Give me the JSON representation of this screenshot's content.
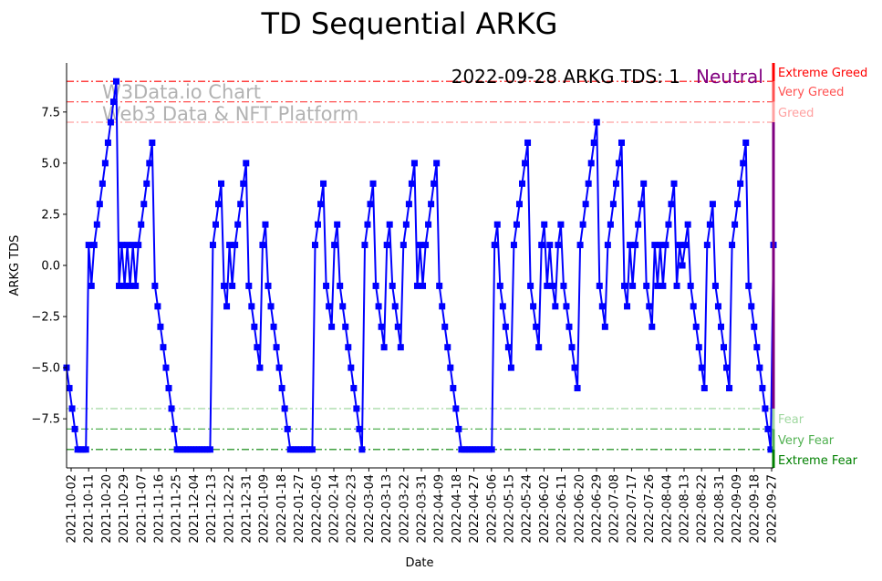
{
  "chart_data": {
    "type": "line",
    "title": "TD Sequential ARKG",
    "xlabel": "Date",
    "ylabel": "ARKG TDS",
    "ylim": [
      -9.9,
      9.9
    ],
    "xlim": [
      "2021-09-30",
      "2022-09-28"
    ],
    "grid": false,
    "watermark": [
      "W3Data.io Chart",
      "Web3 Data & NFT Platform"
    ],
    "annotation": {
      "text": "2022-09-28 ARKG TDS: 1",
      "status": "Neutral",
      "status_color": "#800080"
    },
    "yticks": [
      -7.5,
      -5.0,
      -2.5,
      0.0,
      2.5,
      5.0,
      7.5
    ],
    "ytick_labels": [
      "−7.5",
      "−5.0",
      "−2.5",
      "0.0",
      "2.5",
      "5.0",
      "7.5"
    ],
    "xtick_labels": [
      "2021-10-02",
      "2021-10-11",
      "2021-10-20",
      "2021-10-29",
      "2021-11-07",
      "2021-11-16",
      "2021-11-25",
      "2021-12-04",
      "2021-12-13",
      "2021-12-22",
      "2021-12-31",
      "2022-01-09",
      "2022-01-18",
      "2022-01-27",
      "2022-02-05",
      "2022-02-14",
      "2022-02-23",
      "2022-03-04",
      "2022-03-13",
      "2022-03-22",
      "2022-03-31",
      "2022-04-09",
      "2022-04-18",
      "2022-04-27",
      "2022-05-06",
      "2022-05-15",
      "2022-05-24",
      "2022-06-02",
      "2022-06-11",
      "2022-06-20",
      "2022-06-29",
      "2022-07-08",
      "2022-07-17",
      "2022-07-26",
      "2022-08-04",
      "2022-08-13",
      "2022-08-22",
      "2022-08-31",
      "2022-09-09",
      "2022-09-18",
      "2022-09-27"
    ],
    "levels": [
      {
        "name": "Extreme Greed",
        "value": 9,
        "color": "#ff0000"
      },
      {
        "name": "Very Greed",
        "value": 8,
        "color": "#ff5050"
      },
      {
        "name": "Greed",
        "value": 7,
        "color": "#ffa0a0"
      },
      {
        "name": "Fear",
        "value": -7,
        "color": "#a0d8a0"
      },
      {
        "name": "Very Fear",
        "value": -8,
        "color": "#50b050"
      },
      {
        "name": "Extreme Fear",
        "value": -9,
        "color": "#008000"
      }
    ],
    "neutral_color": "#800080",
    "series": [
      {
        "name": "ARKG TDS",
        "color": "#0000ff",
        "values": [
          -5,
          -6,
          -7,
          -8,
          -9,
          -9,
          -9,
          -9,
          1,
          -1,
          1,
          2,
          3,
          4,
          5,
          6,
          7,
          8,
          9,
          -1,
          1,
          -1,
          1,
          -1,
          1,
          -1,
          1,
          2,
          3,
          4,
          5,
          6,
          -1,
          -2,
          -3,
          -4,
          -5,
          -6,
          -7,
          -8,
          -9,
          -9,
          -9,
          -9,
          -9,
          -9,
          -9,
          -9,
          -9,
          -9,
          -9,
          -9,
          -9,
          1,
          2,
          3,
          4,
          -1,
          -2,
          1,
          -1,
          1,
          2,
          3,
          4,
          5,
          -1,
          -2,
          -3,
          -4,
          -5,
          1,
          2,
          -1,
          -2,
          -3,
          -4,
          -5,
          -6,
          -7,
          -8,
          -9,
          -9,
          -9,
          -9,
          -9,
          -9,
          -9,
          -9,
          -9,
          1,
          2,
          3,
          4,
          -1,
          -2,
          -3,
          1,
          2,
          -1,
          -2,
          -3,
          -4,
          -5,
          -6,
          -7,
          -8,
          -9,
          1,
          2,
          3,
          4,
          -1,
          -2,
          -3,
          -4,
          1,
          2,
          -1,
          -2,
          -3,
          -4,
          1,
          2,
          3,
          4,
          5,
          -1,
          1,
          -1,
          1,
          2,
          3,
          4,
          5,
          -1,
          -2,
          -3,
          -4,
          -5,
          -6,
          -7,
          -8,
          -9,
          -9,
          -9,
          -9,
          -9,
          -9,
          -9,
          -9,
          -9,
          -9,
          -9,
          -9,
          1,
          2,
          -1,
          -2,
          -3,
          -4,
          -5,
          1,
          2,
          3,
          4,
          5,
          6,
          -1,
          -2,
          -3,
          -4,
          1,
          2,
          -1,
          1,
          -1,
          -2,
          1,
          2,
          -1,
          -2,
          -3,
          -4,
          -5,
          -6,
          1,
          2,
          3,
          4,
          5,
          6,
          7,
          -1,
          -2,
          -3,
          1,
          2,
          3,
          4,
          5,
          6,
          -1,
          -2,
          1,
          -1,
          1,
          2,
          3,
          4,
          -1,
          -2,
          -3,
          1,
          -1,
          1,
          -1,
          1,
          2,
          3,
          4,
          -1,
          1,
          0,
          1,
          2,
          -1,
          -2,
          -3,
          -4,
          -5,
          -6,
          1,
          2,
          3,
          -1,
          -2,
          -3,
          -4,
          -5,
          -6,
          1,
          2,
          3,
          4,
          5,
          6,
          -1,
          -2,
          -3,
          -4,
          -5,
          -6,
          -7,
          -8,
          -9,
          1
        ]
      }
    ]
  }
}
